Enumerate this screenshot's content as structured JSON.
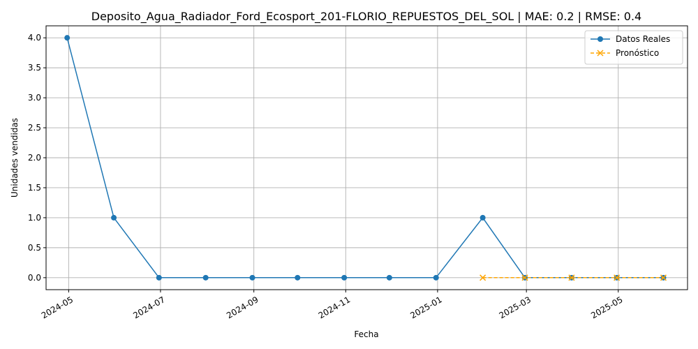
{
  "chart_data": {
    "type": "line",
    "title": "Deposito_Agua_Radiador_Ford_Ecosport_201-FLORIO_REPUESTOS_DEL_SOL | MAE: 0.2 | RMSE: 0.4",
    "xlabel": "Fecha",
    "ylabel": "Unidades vendidas",
    "ylim": [
      -0.2,
      4.2
    ],
    "xlim": [
      "2024-04-16",
      "2025-06-16"
    ],
    "y_ticks": [
      0.0,
      0.5,
      1.0,
      1.5,
      2.0,
      2.5,
      3.0,
      3.5,
      4.0
    ],
    "y_tick_labels": [
      "0.0",
      "0.5",
      "1.0",
      "1.5",
      "2.0",
      "2.5",
      "3.0",
      "3.5",
      "4.0"
    ],
    "x_ticks": [
      "2024-05-01",
      "2024-07-01",
      "2024-09-01",
      "2024-11-01",
      "2025-01-01",
      "2025-03-01",
      "2025-05-01"
    ],
    "x_tick_labels": [
      "2024-05",
      "2024-07",
      "2024-09",
      "2024-11",
      "2025-01",
      "2025-03",
      "2025-05"
    ],
    "grid": true,
    "legend_position": "top-right",
    "series": [
      {
        "name": "Datos Reales",
        "color": "#1f77b4",
        "marker": "circle",
        "linestyle": "solid",
        "x": [
          "2024-04-30",
          "2024-05-31",
          "2024-06-30",
          "2024-07-31",
          "2024-08-31",
          "2024-09-30",
          "2024-10-31",
          "2024-11-30",
          "2024-12-31",
          "2025-01-31",
          "2025-02-28",
          "2025-03-31",
          "2025-04-30",
          "2025-05-31"
        ],
        "values": [
          4,
          1,
          0,
          0,
          0,
          0,
          0,
          0,
          0,
          1,
          0,
          0,
          0,
          0
        ]
      },
      {
        "name": "Pronóstico",
        "color": "#ffa500",
        "marker": "x",
        "linestyle": "dashed",
        "x": [
          "2025-01-31",
          "2025-02-28",
          "2025-03-31",
          "2025-04-30",
          "2025-05-31"
        ],
        "values": [
          0,
          0,
          0,
          0,
          0
        ]
      }
    ]
  }
}
